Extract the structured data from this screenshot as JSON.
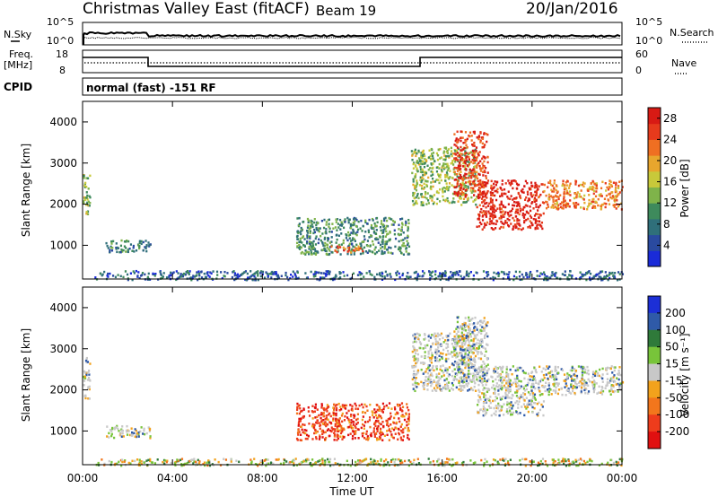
{
  "header": {
    "title": "Christmas Valley East (fitACF)",
    "beam": "Beam 19",
    "date": "20/Jan/2016"
  },
  "top_panels": {
    "nsky_label": "N.Sky",
    "nsearch_label": "N.Search",
    "noise_ticks": [
      "10^5",
      "10^0"
    ],
    "freq_label_1": "Freq.",
    "freq_label_2": "[MHz]",
    "freq_ticks": [
      "18",
      "8"
    ],
    "nave_label": "Nave",
    "nave_ticks": [
      "60",
      "0"
    ],
    "cpid_label": "CPID",
    "cpid_text": "normal (fast) -151 RF"
  },
  "chart_data": [
    {
      "type": "heatmap",
      "title": "",
      "xlabel": "",
      "ylabel": "Slant Range [km]",
      "x_ticks": [
        "00:00",
        "04:00",
        "08:00",
        "12:00",
        "16:00",
        "20:00",
        "00:00"
      ],
      "y_ticks": [
        1000,
        2000,
        3000,
        4000
      ],
      "xlim": [
        0,
        24
      ],
      "ylim": [
        180,
        4500
      ],
      "colorbar": {
        "label": "Power [dB]",
        "ticks": [
          4,
          8,
          12,
          16,
          20,
          24,
          28
        ],
        "range": [
          0,
          30
        ],
        "colors": [
          "#1a2bd8",
          "#2a4aa0",
          "#2f6f7a",
          "#3e8a5c",
          "#7fb34a",
          "#c8c93a",
          "#e8a62d",
          "#ef6f22",
          "#e63a1c",
          "#d81a14"
        ]
      },
      "regions": [
        {
          "t0": 0.0,
          "t1": 0.3,
          "r0": 1700,
          "r1": 2800,
          "value": 14
        },
        {
          "t0": 1.0,
          "t1": 3.0,
          "r0": 850,
          "r1": 1150,
          "value": 9
        },
        {
          "t0": 9.5,
          "t1": 14.5,
          "r0": 800,
          "r1": 1700,
          "value": 10
        },
        {
          "t0": 11.0,
          "t1": 12.5,
          "r0": 850,
          "r1": 1000,
          "value": 24
        },
        {
          "t0": 14.6,
          "t1": 17.5,
          "r0": 2000,
          "r1": 3400,
          "value": 14
        },
        {
          "t0": 16.5,
          "t1": 18.0,
          "r0": 2200,
          "r1": 3800,
          "value": 26
        },
        {
          "t0": 17.5,
          "t1": 20.5,
          "r0": 1400,
          "r1": 2600,
          "value": 28
        },
        {
          "t0": 20.5,
          "t1": 24.0,
          "r0": 1900,
          "r1": 2600,
          "value": 22
        },
        {
          "t0": 0.5,
          "t1": 24.0,
          "r0": 180,
          "r1": 400,
          "value": 6
        }
      ]
    },
    {
      "type": "heatmap",
      "title": "",
      "xlabel": "Time UT",
      "ylabel": "Slant Range [km]",
      "x_ticks": [
        "00:00",
        "04:00",
        "08:00",
        "12:00",
        "16:00",
        "20:00",
        "00:00"
      ],
      "y_ticks": [
        1000,
        2000,
        3000,
        4000
      ],
      "xlim": [
        0,
        24
      ],
      "ylim": [
        180,
        4500
      ],
      "colorbar": {
        "label": "Velocity [m s⁻¹]",
        "ticks": [
          200,
          100,
          50,
          15,
          -15,
          -50,
          -100,
          -200
        ],
        "colors": [
          "#1c2fd6",
          "#2f5aa8",
          "#2f7a3a",
          "#78c43a",
          "#c8c8c8",
          "#f2a21c",
          "#f2761c",
          "#ee3c1c",
          "#e01010"
        ]
      },
      "regions": [
        {
          "t0": 0.0,
          "t1": 0.3,
          "r0": 1700,
          "r1": 2800,
          "cls": "slow"
        },
        {
          "t0": 1.0,
          "t1": 3.0,
          "r0": 850,
          "r1": 1150,
          "cls": "slow"
        },
        {
          "t0": 9.5,
          "t1": 14.5,
          "r0": 800,
          "r1": 1700,
          "cls": "neg-fast"
        },
        {
          "t0": 14.6,
          "t1": 17.5,
          "r0": 2000,
          "r1": 3400,
          "cls": "slow"
        },
        {
          "t0": 16.5,
          "t1": 18.0,
          "r0": 2200,
          "r1": 3800,
          "cls": "slow"
        },
        {
          "t0": 17.5,
          "t1": 20.5,
          "r0": 1400,
          "r1": 2600,
          "cls": "slow"
        },
        {
          "t0": 20.5,
          "t1": 24.0,
          "r0": 1900,
          "r1": 2600,
          "cls": "slow"
        },
        {
          "t0": 0.5,
          "t1": 24.0,
          "r0": 180,
          "r1": 350,
          "cls": "mixed"
        }
      ]
    }
  ]
}
